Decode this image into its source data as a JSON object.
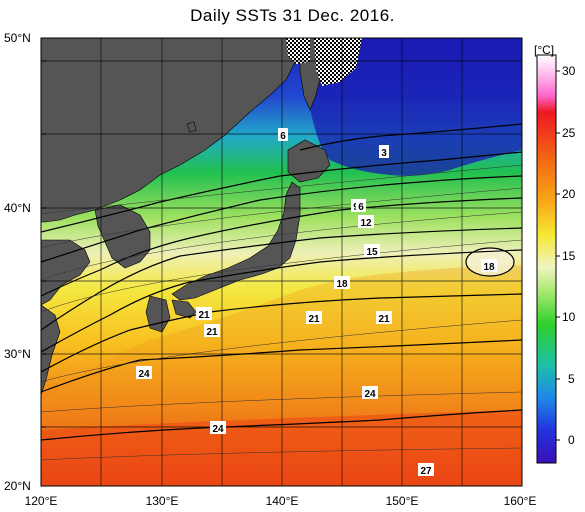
{
  "title": "Daily SSTs 31 Dec. 2016.",
  "lat_labels": [
    "50°N",
    "40°N",
    "30°N",
    "20°N"
  ],
  "lon_labels": [
    "120°E",
    "130°E",
    "140°E",
    "150°E",
    "160°E"
  ],
  "colorbar": {
    "unit": "[°C]",
    "ticks": [
      "30",
      "25",
      "20",
      "15",
      "10",
      "5",
      "0"
    ]
  },
  "isotherm_labels": [
    "6",
    "3",
    "9",
    "6",
    "12",
    "15",
    "18",
    "18",
    "21",
    "21",
    "21",
    "21",
    "24",
    "24",
    "24",
    "27"
  ],
  "colors": {
    "land": "#555555",
    "sea_ice_hatch": "#000000",
    "cold": "#2233cc",
    "warm": "#ee3311"
  }
}
